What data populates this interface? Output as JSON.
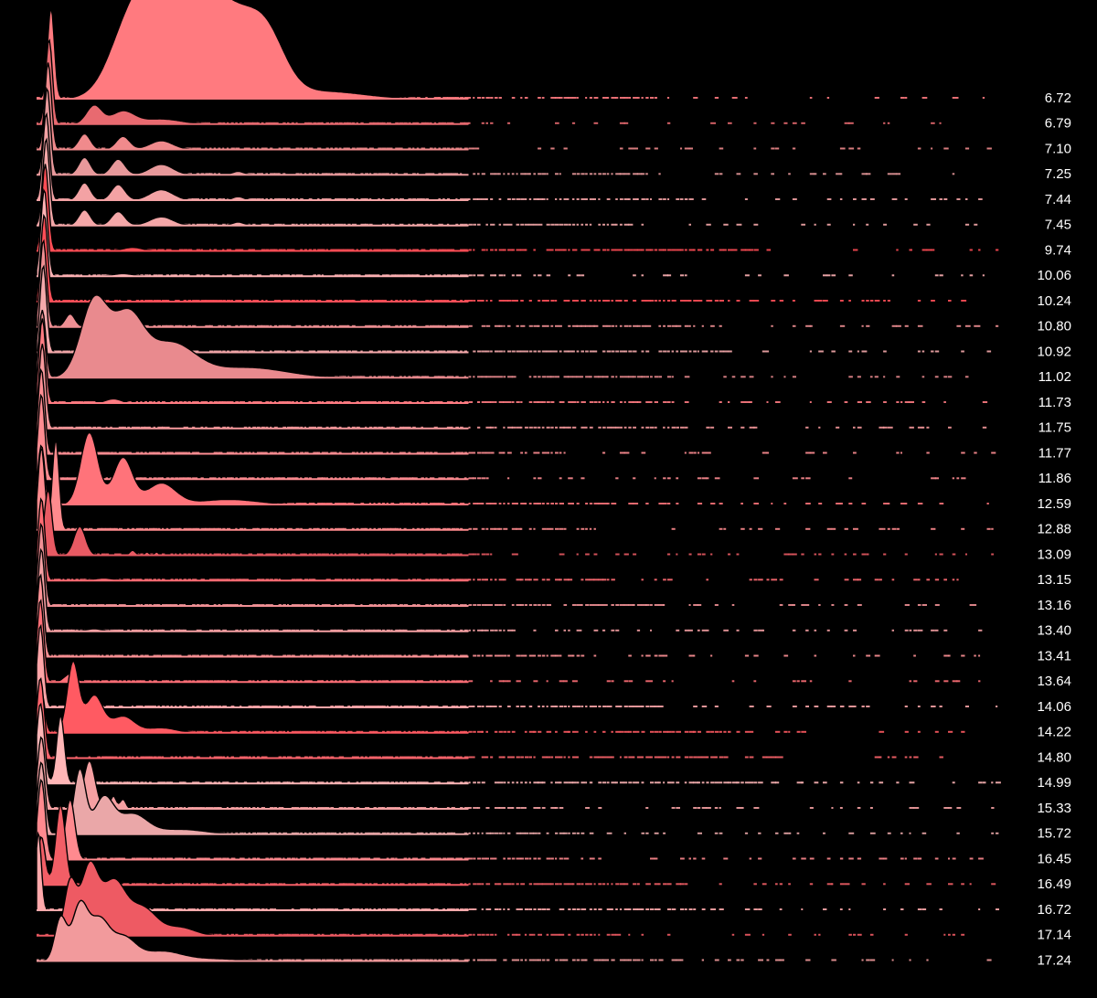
{
  "chart_data": {
    "type": "area",
    "subtype": "ridgeline",
    "title": "",
    "xlabel": "",
    "ylabel": "",
    "grid": false,
    "legend": "none",
    "background": "#000000",
    "outline_color": "#000000",
    "categories": [
      "6.72",
      "6.79",
      "7.10",
      "7.25",
      "7.44",
      "7.45",
      "9.74",
      "10.06",
      "10.24",
      "10.80",
      "10.92",
      "11.02",
      "11.73",
      "11.75",
      "11.77",
      "11.86",
      "12.59",
      "12.88",
      "13.09",
      "13.15",
      "13.16",
      "13.40",
      "13.41",
      "13.64",
      "14.06",
      "14.22",
      "14.80",
      "14.99",
      "15.33",
      "15.72",
      "16.45",
      "16.49",
      "16.72",
      "17.14",
      "17.24"
    ],
    "x_range": [
      0,
      100
    ],
    "series": [
      {
        "label": "6.72",
        "color": "#ff7a7f",
        "peaks": [
          [
            1.5,
            1.0,
            0.35
          ],
          [
            10,
            0.9,
            2.2
          ],
          [
            13,
            0.7,
            1.8
          ],
          [
            16,
            0.75,
            2.6
          ],
          [
            20,
            0.8,
            2.8
          ],
          [
            24,
            0.55,
            2.0
          ],
          [
            30,
            0.08,
            4
          ]
        ],
        "amp": 4.0
      },
      {
        "label": "6.79",
        "color": "#e86a70",
        "peaks": [
          [
            1.3,
            1.0,
            0.35
          ],
          [
            6,
            0.22,
            0.8
          ],
          [
            9,
            0.15,
            1.2
          ],
          [
            13,
            0.06,
            2
          ]
        ],
        "amp": 3.7
      },
      {
        "label": "7.10",
        "color": "#f08a8c",
        "peaks": [
          [
            1.2,
            1.0,
            0.35
          ],
          [
            5,
            0.18,
            0.6
          ],
          [
            9,
            0.15,
            0.7
          ],
          [
            13,
            0.1,
            1.2
          ]
        ],
        "amp": 3.8
      },
      {
        "label": "7.25",
        "color": "#e8999b",
        "peaks": [
          [
            1.1,
            1.0,
            0.35
          ],
          [
            5,
            0.2,
            0.6
          ],
          [
            8.5,
            0.18,
            0.7
          ],
          [
            13,
            0.12,
            1.2
          ],
          [
            21,
            0.04,
            0.6
          ]
        ],
        "amp": 3.8
      },
      {
        "label": "7.44",
        "color": "#f3a2a4",
        "peaks": [
          [
            1.0,
            1.0,
            0.35
          ],
          [
            5,
            0.2,
            0.6
          ],
          [
            8.5,
            0.18,
            0.7
          ],
          [
            13,
            0.12,
            1.2
          ],
          [
            21,
            0.04,
            0.6
          ]
        ],
        "amp": 3.8
      },
      {
        "label": "7.45",
        "color": "#f4a7a8",
        "peaks": [
          [
            1.0,
            1.0,
            0.35
          ],
          [
            5,
            0.18,
            0.6
          ],
          [
            8.5,
            0.16,
            0.7
          ],
          [
            13,
            0.1,
            1.2
          ],
          [
            21,
            0.04,
            0.6
          ]
        ],
        "amp": 3.8
      },
      {
        "label": "9.74",
        "color": "#ff4d55",
        "peaks": [
          [
            0.9,
            1.0,
            0.35
          ],
          [
            10,
            0.04,
            1.0
          ]
        ],
        "amp": 3.8
      },
      {
        "label": "10.06",
        "color": "#ffb3b5",
        "peaks": [
          [
            0.8,
            1.0,
            0.35
          ],
          [
            9,
            0.03,
            1.0
          ]
        ],
        "amp": 3.8
      },
      {
        "label": "10.24",
        "color": "#ff4f58",
        "peaks": [
          [
            0.8,
            1.0,
            0.35
          ]
        ],
        "amp": 3.8
      },
      {
        "label": "10.80",
        "color": "#ef8f93",
        "peaks": [
          [
            0.7,
            1.0,
            0.35
          ],
          [
            3.5,
            0.15,
            0.5
          ]
        ],
        "amp": 3.8
      },
      {
        "label": "10.92",
        "color": "#f5a9ab",
        "peaks": [
          [
            0.7,
            1.0,
            0.35
          ]
        ],
        "amp": 3.8
      },
      {
        "label": "11.02",
        "color": "#e98a8e",
        "peaks": [
          [
            0.6,
            0.8,
            0.35
          ],
          [
            6,
            0.9,
            1.4
          ],
          [
            9.5,
            0.7,
            1.6
          ],
          [
            14,
            0.4,
            2.5
          ],
          [
            22,
            0.12,
            4
          ]
        ],
        "amp": 3.7
      },
      {
        "label": "11.73",
        "color": "#ff7b82",
        "peaks": [
          [
            0.6,
            1.0,
            0.35
          ],
          [
            8,
            0.05,
            0.8
          ]
        ],
        "amp": 3.7
      },
      {
        "label": "11.75",
        "color": "#f99a9d",
        "peaks": [
          [
            0.6,
            1.0,
            0.35
          ]
        ],
        "amp": 3.7
      },
      {
        "label": "11.77",
        "color": "#ff8e93",
        "peaks": [
          [
            0.5,
            1.0,
            0.35
          ]
        ],
        "amp": 3.7
      },
      {
        "label": "11.86",
        "color": "#ff8c91",
        "peaks": [
          [
            0.5,
            1.0,
            0.35
          ]
        ],
        "amp": 3.7
      },
      {
        "label": "12.59",
        "color": "#ff737a",
        "peaks": [
          [
            0.5,
            0.7,
            0.35
          ],
          [
            5.5,
            0.85,
            0.9
          ],
          [
            9,
            0.55,
            1.0
          ],
          [
            13,
            0.25,
            1.5
          ],
          [
            20,
            0.06,
            3
          ]
        ],
        "amp": 3.7
      },
      {
        "label": "12.88",
        "color": "#ff8b8e",
        "peaks": [
          [
            0.5,
            1.0,
            0.35
          ],
          [
            2.0,
            1.1,
            0.35
          ]
        ],
        "amp": 3.6
      },
      {
        "label": "13.09",
        "color": "#e85a63",
        "peaks": [
          [
            1.2,
            0.8,
            0.4
          ],
          [
            4.5,
            0.35,
            0.6
          ],
          [
            10,
            0.06,
            0.3
          ],
          [
            11.5,
            0.04,
            0.2
          ],
          [
            12.5,
            0.04,
            0.2
          ]
        ],
        "amp": 3.6
      },
      {
        "label": "13.15",
        "color": "#ff6b73",
        "peaks": [
          [
            0.5,
            1.0,
            0.35
          ],
          [
            7,
            0.03,
            1.0
          ]
        ],
        "amp": 3.6
      },
      {
        "label": "13.16",
        "color": "#f09095",
        "peaks": [
          [
            0.5,
            1.0,
            0.35
          ]
        ],
        "amp": 3.6
      },
      {
        "label": "13.40",
        "color": "#f5a0a3",
        "peaks": [
          [
            0.5,
            1.0,
            0.35
          ],
          [
            6,
            0.03,
            0.8
          ]
        ],
        "amp": 3.6
      },
      {
        "label": "13.41",
        "color": "#ff9296",
        "peaks": [
          [
            0.4,
            1.0,
            0.35
          ]
        ],
        "amp": 3.6
      },
      {
        "label": "13.64",
        "color": "#ff6f77",
        "peaks": [
          [
            0.4,
            1.0,
            0.35
          ],
          [
            3.5,
            0.1,
            0.6
          ]
        ],
        "amp": 3.6
      },
      {
        "label": "14.06",
        "color": "#ffa5a8",
        "peaks": [
          [
            0.4,
            1.0,
            0.35
          ]
        ],
        "amp": 3.6
      },
      {
        "label": "14.22",
        "color": "#ff5a62",
        "peaks": [
          [
            0.5,
            0.5,
            0.35
          ],
          [
            3.8,
            0.85,
            0.6
          ],
          [
            6,
            0.45,
            0.9
          ],
          [
            9,
            0.2,
            1.2
          ],
          [
            13,
            0.06,
            1.5
          ]
        ],
        "amp": 3.6
      },
      {
        "label": "14.80",
        "color": "#ff656d",
        "peaks": [
          [
            0.4,
            1.0,
            0.4
          ]
        ],
        "amp": 3.5
      },
      {
        "label": "14.99",
        "color": "#ffb6b7",
        "peaks": [
          [
            0.4,
            1.0,
            0.4
          ],
          [
            2.5,
            0.85,
            0.4
          ]
        ],
        "amp": 3.5
      },
      {
        "label": "15.33",
        "color": "#f5a0a2",
        "peaks": [
          [
            0.5,
            0.9,
            0.4
          ],
          [
            5.5,
            0.6,
            0.6
          ],
          [
            8,
            0.16,
            0.3
          ],
          [
            9,
            0.12,
            0.3
          ]
        ],
        "amp": 3.5
      },
      {
        "label": "15.72",
        "color": "#eaa7a8",
        "peaks": [
          [
            0.5,
            0.9,
            0.4
          ],
          [
            4.5,
            0.8,
            0.6
          ],
          [
            7,
            0.45,
            1.0
          ],
          [
            10,
            0.25,
            1.5
          ],
          [
            15,
            0.06,
            2.5
          ]
        ],
        "amp": 3.5
      },
      {
        "label": "16.45",
        "color": "#ff8a8f",
        "peaks": [
          [
            0.5,
            1.0,
            0.4
          ],
          [
            3.5,
            0.75,
            0.5
          ]
        ],
        "amp": 3.5
      },
      {
        "label": "16.49",
        "color": "#f25e66",
        "peaks": [
          [
            0.5,
            0.6,
            0.4
          ],
          [
            2.5,
            1.0,
            0.5
          ]
        ],
        "amp": 3.5
      },
      {
        "label": "16.72",
        "color": "#ffa9ab",
        "peaks": [
          [
            0.2,
            1.0,
            0.3
          ]
        ],
        "amp": 3.4
      },
      {
        "label": "17.14",
        "color": "#ee5a63",
        "peaks": [
          [
            3.5,
            0.65,
            0.6
          ],
          [
            5.5,
            0.85,
            0.9
          ],
          [
            8,
            0.65,
            1.2
          ],
          [
            11,
            0.35,
            1.5
          ],
          [
            15,
            0.1,
            1.5
          ]
        ],
        "amp": 3.5
      },
      {
        "label": "17.24",
        "color": "#f29a9c",
        "peaks": [
          [
            2.5,
            0.55,
            0.6
          ],
          [
            4.5,
            0.7,
            0.8
          ],
          [
            6.5,
            0.5,
            1.0
          ],
          [
            9,
            0.3,
            1.3
          ],
          [
            13,
            0.12,
            2
          ],
          [
            18,
            0.03,
            3
          ]
        ],
        "amp": 3.4
      }
    ],
    "rug_color": "#ff7077"
  }
}
